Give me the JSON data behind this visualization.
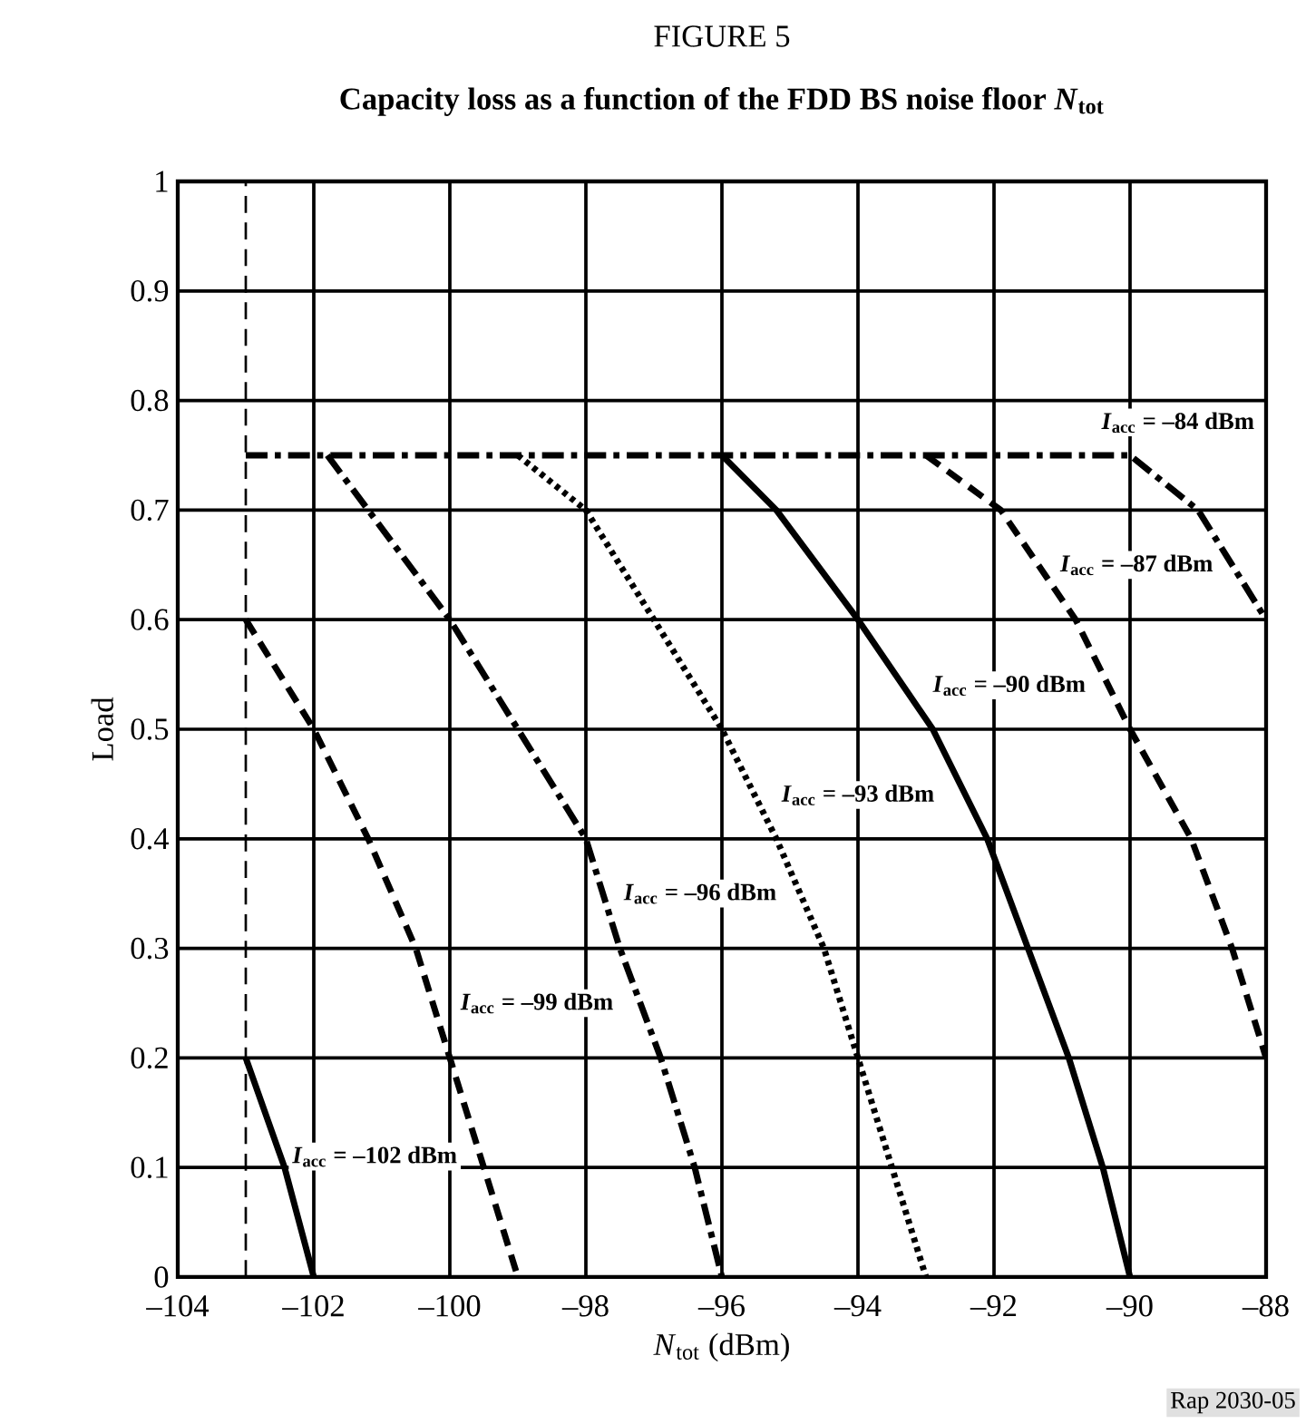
{
  "chart_data": {
    "type": "line",
    "title": "FIGURE 5",
    "subtitle": "Capacity loss as a function of the FDD BS noise floor *N*$_{tot}$",
    "xlabel": "*N*$_{tot}$ (dBm)",
    "ylabel": "Load",
    "xlim": [
      -104,
      -88
    ],
    "ylim": [
      0,
      1
    ],
    "xticks": [
      {
        "value": -104,
        "label": "–104"
      },
      {
        "value": -102,
        "label": "–102"
      },
      {
        "value": -100,
        "label": "–100"
      },
      {
        "value": -98,
        "label": "–98"
      },
      {
        "value": -96,
        "label": "–96"
      },
      {
        "value": -94,
        "label": "–94"
      },
      {
        "value": -92,
        "label": "–92"
      },
      {
        "value": -90,
        "label": "–90"
      },
      {
        "value": -88,
        "label": "–88"
      }
    ],
    "yticks": [
      0,
      0.1,
      0.2,
      0.3,
      0.4,
      0.5,
      0.6,
      0.7,
      0.8,
      0.9,
      1
    ],
    "grid": true,
    "ref_lines": [
      {
        "axis": "x",
        "value": -103,
        "line_style": "dashed"
      }
    ],
    "series": [
      {
        "name": "*I*$_{acc}$ = –102 dBm",
        "color": "#000000",
        "line_style": "solid",
        "x": [
          -103,
          -102.43,
          -102
        ],
        "values": [
          0.2,
          0.1,
          0
        ]
      },
      {
        "name": "*I*$_{acc}$ = –99 dBm",
        "color": "#000000",
        "line_style": "dashed",
        "x": [
          -103,
          -102,
          -101.2,
          -100.5,
          -100,
          -99.5,
          -99
        ],
        "values": [
          0.6,
          0.5,
          0.4,
          0.3,
          0.2,
          0.1,
          0
        ]
      },
      {
        "name": "*I*$_{acc}$ = –96 dBm",
        "color": "#000000",
        "line_style": "dashdot",
        "x": [
          -101.8,
          -100,
          -99,
          -98,
          -97.5,
          -96.9,
          -96.4,
          -96
        ],
        "values": [
          0.75,
          0.6,
          0.5,
          0.4,
          0.3,
          0.2,
          0.1,
          0
        ]
      },
      {
        "name": "*I*$_{acc}$ = –93 dBm",
        "color": "#000000",
        "line_style": "dotted",
        "x": [
          -99,
          -98,
          -97,
          -96,
          -95.2,
          -94.5,
          -94,
          -93.5,
          -93
        ],
        "values": [
          0.75,
          0.7,
          0.6,
          0.5,
          0.4,
          0.3,
          0.2,
          0.1,
          0
        ]
      },
      {
        "name": "*I*$_{acc}$ = –90 dBm",
        "color": "#000000",
        "line_style": "solid",
        "x": [
          -96,
          -95.2,
          -94,
          -92.9,
          -92.1,
          -91.5,
          -90.9,
          -90.4,
          -90
        ],
        "values": [
          0.75,
          0.7,
          0.6,
          0.5,
          0.4,
          0.3,
          0.2,
          0.1,
          0
        ]
      },
      {
        "name": "*I*$_{acc}$ = –87 dBm",
        "color": "#000000",
        "line_style": "dashed",
        "x": [
          -93,
          -91.9,
          -90.8,
          -90,
          -89.1,
          -88.5,
          -88
        ],
        "values": [
          0.75,
          0.7,
          0.6,
          0.5,
          0.4,
          0.3,
          0.2
        ]
      },
      {
        "name": "*I*$_{acc}$ = –84 dBm",
        "color": "#000000",
        "line_style": "dashdot",
        "x": [
          -103,
          -90,
          -89,
          -88
        ],
        "values": [
          0.75,
          0.75,
          0.7,
          0.6
        ]
      }
    ],
    "annotations": [
      "Rap 2030-05"
    ]
  }
}
